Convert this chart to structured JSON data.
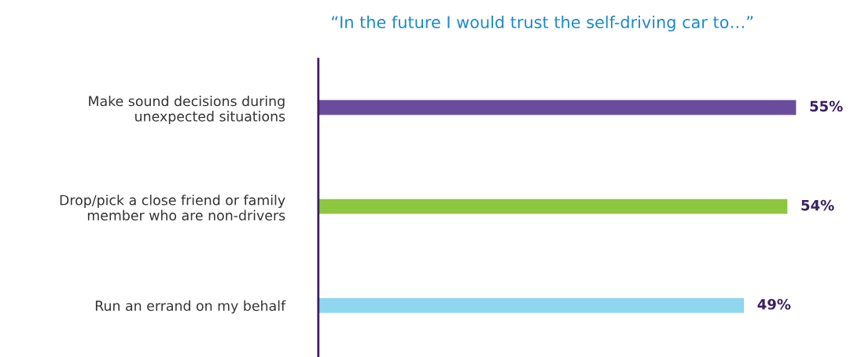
{
  "chart_data": {
    "type": "bar",
    "orientation": "horizontal",
    "title": "“In the future I would trust the self-driving car to…”",
    "categories": [
      "Make sound decisions during\nunexpected situations",
      "Drop/pick a close friend or family\nmember who are non-drivers",
      "Run an errand on my behalf"
    ],
    "values": [
      55,
      54,
      49
    ],
    "colors": [
      "#6a4c9c",
      "#8dc63f",
      "#8fd6ef"
    ],
    "value_labels": [
      "55%",
      "54%",
      "49%"
    ],
    "tick_labels": "y",
    "grid": false,
    "legend": false
  }
}
